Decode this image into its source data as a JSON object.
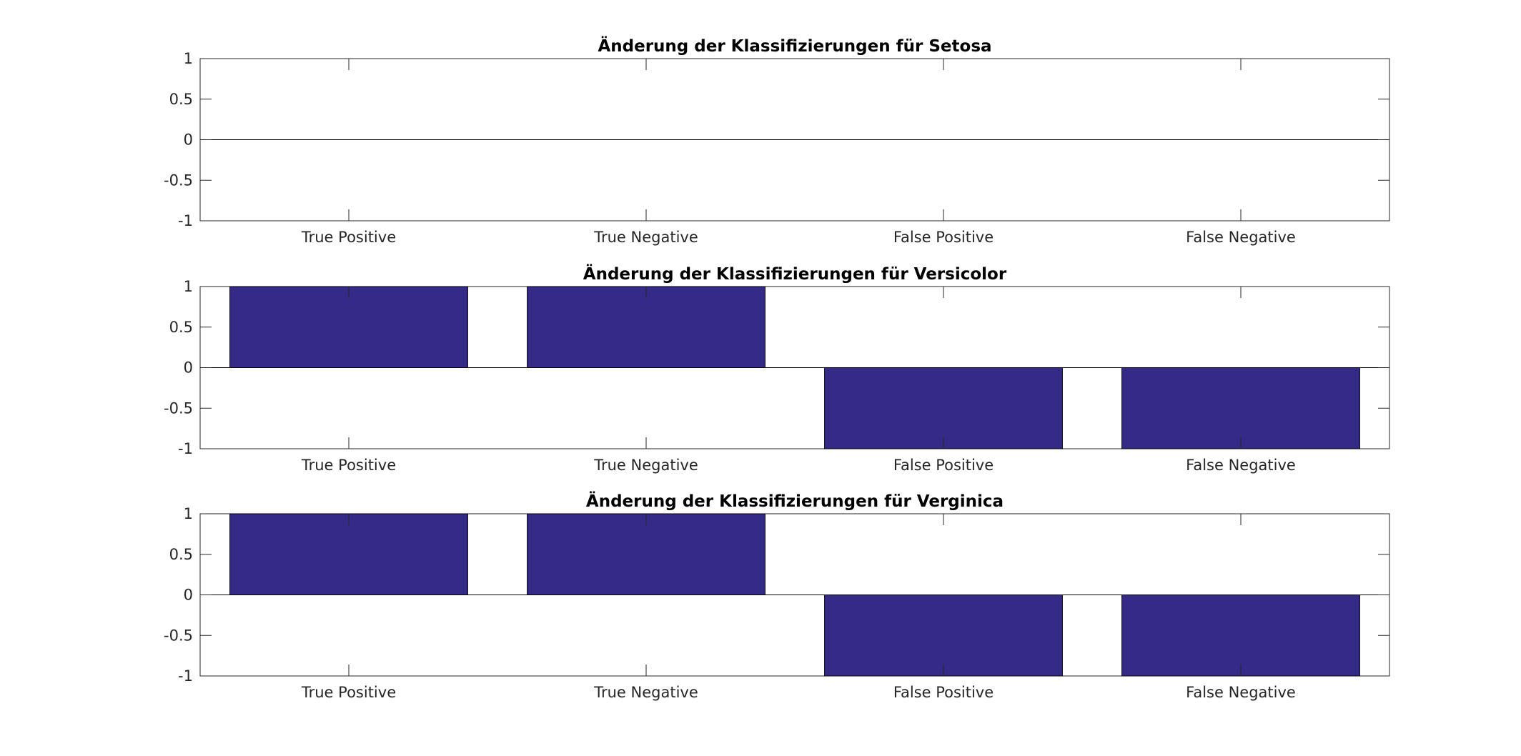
{
  "charts": [
    {
      "type": "bar",
      "title": "Änderung der Klassifizierungen für Setosa",
      "categories": [
        "True Positive",
        "True Negative",
        "False Positive",
        "False Negative"
      ],
      "values": [
        0,
        0,
        0,
        0
      ],
      "ylim": [
        -1,
        1
      ],
      "yticks": [
        "1",
        "0.5",
        "0",
        "-0.5",
        "-1"
      ]
    },
    {
      "type": "bar",
      "title": "Änderung der Klassifizierungen für Versicolor",
      "categories": [
        "True Positive",
        "True Negative",
        "False Positive",
        "False Negative"
      ],
      "values": [
        1,
        1,
        -1,
        -1
      ],
      "ylim": [
        -1,
        1
      ],
      "yticks": [
        "1",
        "0.5",
        "0",
        "-0.5",
        "-1"
      ]
    },
    {
      "type": "bar",
      "title": "Änderung der Klassifizierungen für Verginica",
      "categories": [
        "True Positive",
        "True Negative",
        "False Positive",
        "False Negative"
      ],
      "values": [
        1,
        1,
        -1,
        -1
      ],
      "ylim": [
        -1,
        1
      ],
      "yticks": [
        "1",
        "0.5",
        "0",
        "-0.5",
        "-1"
      ]
    }
  ],
  "chart_data": [
    {
      "type": "bar",
      "title": "Änderung der Klassifizierungen für Setosa",
      "categories": [
        "True Positive",
        "True Negative",
        "False Positive",
        "False Negative"
      ],
      "values": [
        0,
        0,
        0,
        0
      ],
      "xlabel": "",
      "ylabel": "",
      "ylim": [
        -1,
        1
      ],
      "grid": false,
      "bar_color": "#352a87"
    },
    {
      "type": "bar",
      "title": "Änderung der Klassifizierungen für Versicolor",
      "categories": [
        "True Positive",
        "True Negative",
        "False Positive",
        "False Negative"
      ],
      "values": [
        1,
        1,
        -1,
        -1
      ],
      "xlabel": "",
      "ylabel": "",
      "ylim": [
        -1,
        1
      ],
      "grid": false,
      "bar_color": "#352a87"
    },
    {
      "type": "bar",
      "title": "Änderung der Klassifizierungen für Verginica",
      "categories": [
        "True Positive",
        "True Negative",
        "False Positive",
        "False Negative"
      ],
      "values": [
        1,
        1,
        -1,
        -1
      ],
      "xlabel": "",
      "ylabel": "",
      "ylim": [
        -1,
        1
      ],
      "grid": false,
      "bar_color": "#352a87"
    }
  ],
  "colors": {
    "bar": "#352a87",
    "axis": "#262626",
    "background": "#ffffff"
  }
}
